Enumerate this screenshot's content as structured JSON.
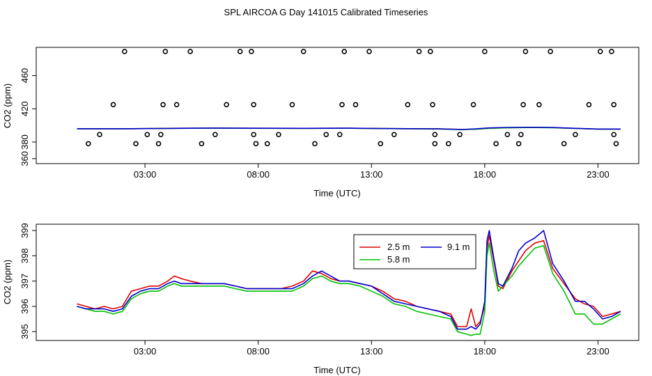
{
  "figure_title": "SPL AIRCOA G  Day 141015  Calibrated Timeseries",
  "colors": {
    "red": "#e00000",
    "green": "#00c000",
    "blue": "#0000d0",
    "axis": "#000000"
  },
  "chart_data": [
    {
      "type": "scatter",
      "title": "",
      "xlabel": "Time (UTC)",
      "ylabel": "CO2 (ppm)",
      "xlim": [
        -1.8,
        24.8
      ],
      "ylim": [
        354,
        494
      ],
      "xticks": [
        3,
        8,
        13,
        18,
        23
      ],
      "xtick_labels": [
        "03:00",
        "08:00",
        "13:00",
        "18:00",
        "23:00"
      ],
      "yticks": [
        360,
        380,
        420,
        460
      ],
      "ytick_labels": [
        "360",
        "380",
        "420",
        "460"
      ],
      "points": [
        [
          0.5,
          378
        ],
        [
          1.0,
          389
        ],
        [
          1.6,
          425
        ],
        [
          2.1,
          489
        ],
        [
          2.6,
          378
        ],
        [
          3.1,
          389
        ],
        [
          3.6,
          378
        ],
        [
          3.7,
          389
        ],
        [
          3.8,
          425
        ],
        [
          3.9,
          489
        ],
        [
          4.4,
          425
        ],
        [
          5.0,
          489
        ],
        [
          5.5,
          378
        ],
        [
          6.1,
          389
        ],
        [
          6.6,
          425
        ],
        [
          7.2,
          489
        ],
        [
          7.7,
          489
        ],
        [
          7.8,
          425
        ],
        [
          7.8,
          389
        ],
        [
          7.9,
          378
        ],
        [
          8.4,
          378
        ],
        [
          8.9,
          389
        ],
        [
          9.5,
          425
        ],
        [
          10.0,
          489
        ],
        [
          10.5,
          378
        ],
        [
          11.0,
          389
        ],
        [
          11.6,
          389
        ],
        [
          11.7,
          425
        ],
        [
          11.8,
          489
        ],
        [
          12.3,
          425
        ],
        [
          12.9,
          489
        ],
        [
          13.4,
          378
        ],
        [
          14.0,
          389
        ],
        [
          14.6,
          425
        ],
        [
          15.1,
          489
        ],
        [
          15.6,
          489
        ],
        [
          15.7,
          425
        ],
        [
          15.8,
          389
        ],
        [
          15.8,
          378
        ],
        [
          16.4,
          378
        ],
        [
          16.9,
          389
        ],
        [
          17.5,
          425
        ],
        [
          18.0,
          489
        ],
        [
          18.5,
          378
        ],
        [
          19.0,
          389
        ],
        [
          19.5,
          378
        ],
        [
          19.6,
          389
        ],
        [
          19.7,
          425
        ],
        [
          19.8,
          489
        ],
        [
          20.4,
          425
        ],
        [
          20.9,
          489
        ],
        [
          21.5,
          378
        ],
        [
          22.0,
          389
        ],
        [
          22.6,
          425
        ],
        [
          23.1,
          489
        ],
        [
          23.6,
          489
        ],
        [
          23.7,
          425
        ],
        [
          23.7,
          389
        ],
        [
          23.8,
          378
        ]
      ],
      "series": [
        {
          "name": "2.5 m",
          "color": "#e00000",
          "x": [
            0,
            2,
            4,
            6,
            8,
            10,
            12,
            14,
            16,
            17,
            17.6,
            18.2,
            19,
            20,
            21,
            22,
            23,
            24
          ],
          "values": [
            396,
            396,
            396.5,
            396.8,
            396.6,
            396.5,
            396.7,
            396.2,
            395.8,
            395.2,
            395.6,
            396.6,
            397.2,
            397.6,
            397.3,
            396.4,
            395.6,
            395.6
          ]
        },
        {
          "name": "5.8 m",
          "color": "#00c000",
          "x": [
            0,
            2,
            4,
            6,
            8,
            10,
            12,
            14,
            16,
            17,
            17.6,
            18.2,
            19,
            20,
            21,
            22,
            23,
            24
          ],
          "values": [
            395.9,
            395.9,
            396.4,
            396.7,
            396.5,
            396.4,
            396.6,
            396.1,
            395.7,
            395,
            395.4,
            396.5,
            397.1,
            397.5,
            397.2,
            396.3,
            395.5,
            395.5
          ]
        },
        {
          "name": "9.1 m",
          "color": "#0000d0",
          "x": [
            0,
            2,
            4,
            6,
            8,
            10,
            12,
            14,
            16,
            17,
            17.6,
            18.2,
            19,
            20,
            21,
            22,
            23,
            24
          ],
          "values": [
            396,
            396,
            396.4,
            396.8,
            396.6,
            396.5,
            396.7,
            396.2,
            395.8,
            395.1,
            395.8,
            397,
            397.6,
            397.8,
            397.5,
            396.5,
            395.7,
            395.7
          ]
        }
      ]
    },
    {
      "type": "line",
      "title": "",
      "xlabel": "Time (UTC)",
      "ylabel": "CO2 (ppm)",
      "xlim": [
        -1.8,
        24.8
      ],
      "ylim": [
        394.65,
        399.25
      ],
      "xticks": [
        3,
        8,
        13,
        18,
        23
      ],
      "xtick_labels": [
        "03:00",
        "08:00",
        "13:00",
        "18:00",
        "23:00"
      ],
      "yticks": [
        395,
        396,
        397,
        398,
        399
      ],
      "ytick_labels": [
        "395",
        "396",
        "397",
        "398",
        "399"
      ],
      "legend_position": "top-right",
      "series": [
        {
          "name": "2.5 m",
          "color": "#e00000",
          "x": [
            0,
            0.4,
            0.8,
            1.2,
            1.6,
            2.0,
            2.4,
            2.8,
            3.2,
            3.6,
            4.0,
            4.3,
            4.6,
            5.0,
            5.5,
            6.0,
            6.5,
            7.0,
            7.5,
            8.0,
            8.5,
            9.0,
            9.5,
            10.0,
            10.4,
            10.8,
            11.2,
            11.6,
            12.0,
            12.5,
            13.0,
            13.5,
            14.0,
            14.5,
            15.0,
            15.5,
            16.0,
            16.5,
            16.8,
            17.2,
            17.4,
            17.6,
            17.8,
            18.0,
            18.1,
            18.2,
            18.4,
            18.6,
            18.8,
            19.2,
            19.5,
            19.8,
            20.2,
            20.6,
            21.0,
            21.5,
            22.0,
            22.4,
            22.8,
            23.2,
            23.6,
            24.0
          ],
          "values": [
            396.1,
            396.0,
            395.9,
            396.0,
            395.9,
            396.0,
            396.6,
            396.7,
            396.8,
            396.8,
            397.0,
            397.2,
            397.1,
            397.0,
            396.9,
            396.9,
            396.9,
            396.8,
            396.7,
            396.7,
            396.7,
            396.7,
            396.8,
            397.0,
            397.4,
            397.3,
            397.1,
            397.0,
            397.0,
            396.9,
            396.8,
            396.6,
            396.3,
            396.2,
            396.0,
            395.9,
            395.8,
            395.7,
            395.2,
            395.2,
            395.9,
            395.2,
            395.4,
            396.0,
            398.3,
            398.8,
            397.8,
            396.8,
            396.7,
            397.4,
            397.8,
            398.2,
            398.5,
            398.6,
            397.5,
            396.9,
            396.3,
            396.1,
            396.0,
            395.6,
            395.7,
            395.8
          ]
        },
        {
          "name": "5.8 m",
          "color": "#00c000",
          "x": [
            0,
            0.4,
            0.8,
            1.2,
            1.6,
            2.0,
            2.4,
            2.8,
            3.2,
            3.6,
            4.0,
            4.3,
            4.6,
            5.0,
            5.5,
            6.0,
            6.5,
            7.0,
            7.5,
            8.0,
            8.5,
            9.0,
            9.5,
            10.0,
            10.4,
            10.8,
            11.2,
            11.6,
            12.0,
            12.5,
            13.0,
            13.5,
            14.0,
            14.5,
            15.0,
            15.5,
            16.0,
            16.5,
            16.8,
            17.2,
            17.4,
            17.6,
            17.8,
            18.0,
            18.1,
            18.2,
            18.4,
            18.6,
            18.8,
            19.2,
            19.5,
            19.8,
            20.2,
            20.6,
            21.0,
            21.5,
            22.0,
            22.4,
            22.8,
            23.2,
            23.6,
            24.0
          ],
          "values": [
            396.0,
            395.9,
            395.8,
            395.8,
            395.7,
            395.8,
            396.3,
            396.5,
            396.6,
            396.6,
            396.8,
            396.9,
            396.8,
            396.8,
            396.8,
            396.8,
            396.8,
            396.7,
            396.6,
            396.6,
            396.6,
            396.6,
            396.6,
            396.8,
            397.1,
            397.2,
            397.0,
            396.9,
            396.9,
            396.8,
            396.6,
            396.4,
            396.1,
            396.0,
            395.8,
            395.7,
            395.6,
            395.5,
            395.0,
            394.9,
            394.85,
            394.9,
            394.9,
            395.8,
            398.0,
            398.5,
            397.4,
            396.6,
            396.8,
            397.2,
            397.6,
            397.9,
            398.3,
            398.4,
            397.3,
            396.6,
            395.7,
            395.7,
            395.3,
            395.3,
            395.5,
            395.7
          ]
        },
        {
          "name": "9.1 m",
          "color": "#0000d0",
          "x": [
            0,
            0.4,
            0.8,
            1.2,
            1.6,
            2.0,
            2.4,
            2.8,
            3.2,
            3.6,
            4.0,
            4.3,
            4.6,
            5.0,
            5.5,
            6.0,
            6.5,
            7.0,
            7.5,
            8.0,
            8.5,
            9.0,
            9.5,
            10.0,
            10.4,
            10.8,
            11.2,
            11.6,
            12.0,
            12.5,
            13.0,
            13.5,
            14.0,
            14.5,
            15.0,
            15.5,
            16.0,
            16.5,
            16.8,
            17.2,
            17.4,
            17.6,
            17.8,
            18.0,
            18.1,
            18.2,
            18.4,
            18.6,
            18.8,
            19.2,
            19.5,
            19.8,
            20.2,
            20.6,
            21.0,
            21.5,
            22.0,
            22.4,
            22.8,
            23.2,
            23.6,
            24.0
          ],
          "values": [
            396.0,
            395.9,
            395.9,
            395.9,
            395.8,
            395.9,
            396.4,
            396.6,
            396.7,
            396.7,
            396.9,
            397.0,
            396.9,
            396.9,
            396.9,
            396.9,
            396.9,
            396.8,
            396.7,
            396.7,
            396.7,
            396.7,
            396.7,
            396.9,
            397.2,
            397.4,
            397.2,
            397.0,
            397.0,
            396.9,
            396.8,
            396.5,
            396.2,
            396.1,
            396.0,
            395.9,
            395.8,
            395.6,
            395.1,
            395.1,
            395.2,
            395.1,
            395.3,
            396.2,
            398.6,
            399.0,
            397.9,
            396.9,
            396.8,
            397.5,
            398.2,
            398.5,
            398.7,
            399.0,
            397.7,
            397.0,
            396.2,
            396.2,
            395.9,
            395.5,
            395.6,
            395.8
          ]
        }
      ]
    }
  ]
}
